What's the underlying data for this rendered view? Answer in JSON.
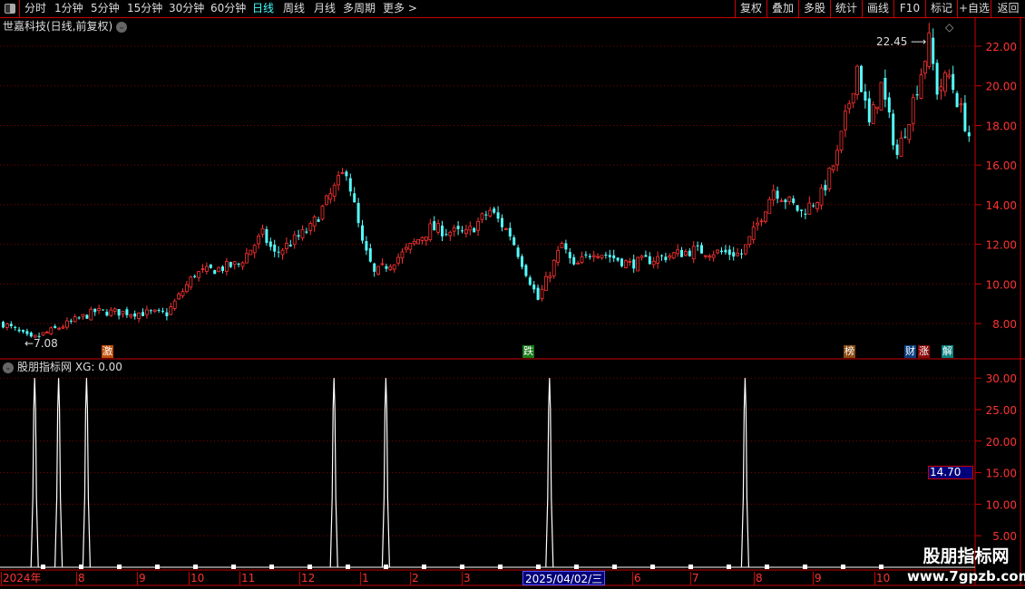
{
  "toolbar": {
    "periods": [
      "分时",
      "1分钟",
      "5分钟",
      "15分钟",
      "30分钟",
      "60分钟",
      "日线",
      "周线",
      "月线",
      "多周期",
      "更多 >"
    ],
    "active_period": "日线",
    "right_buttons": [
      "复权",
      "叠加",
      "多股",
      "统计",
      "画线",
      "F10",
      "标记",
      "+自选",
      "返回"
    ]
  },
  "chart": {
    "title": "世嘉科技(日线,前复权)",
    "high_label": "22.45",
    "low_label": "7.08",
    "price_ticks": [
      22,
      20,
      18,
      16,
      14,
      12,
      10,
      8
    ],
    "candle_keypoints": [
      [
        0,
        8.0
      ],
      [
        7,
        7.2
      ],
      [
        14,
        7.8
      ],
      [
        23,
        8.6
      ],
      [
        41,
        8.5
      ],
      [
        48,
        10.5
      ],
      [
        59,
        11.0
      ],
      [
        65,
        12.5
      ],
      [
        68,
        11.5
      ],
      [
        77,
        12.8
      ],
      [
        86,
        15.8
      ],
      [
        90,
        12.0
      ],
      [
        93,
        10.5
      ],
      [
        100,
        11.5
      ],
      [
        107,
        12.8
      ],
      [
        116,
        12.5
      ],
      [
        122,
        13.7
      ],
      [
        127,
        12.5
      ],
      [
        134,
        9.2
      ],
      [
        140,
        12.0
      ],
      [
        143,
        10.8
      ],
      [
        148,
        11.7
      ],
      [
        157,
        11.0
      ],
      [
        173,
        11.7
      ],
      [
        185,
        11.5
      ],
      [
        188,
        12.6
      ],
      [
        193,
        14.8
      ],
      [
        200,
        13.6
      ],
      [
        205,
        14.5
      ],
      [
        209,
        16.5
      ],
      [
        214,
        21.0
      ],
      [
        217,
        18.0
      ],
      [
        220,
        20.0
      ],
      [
        224,
        16.5
      ],
      [
        227,
        18.5
      ],
      [
        232,
        22.2
      ],
      [
        234,
        19.8
      ],
      [
        237,
        20.5
      ],
      [
        242,
        17.5
      ]
    ],
    "badges": [
      {
        "text": "激",
        "color": "#c0500a"
      },
      {
        "text": "跌",
        "color": "#1a7a1a"
      },
      {
        "text": "榜",
        "color": "#8a4a10"
      },
      {
        "text": "财",
        "color": "#0a4080"
      },
      {
        "text": "涨",
        "color": "#8a0a0a"
      },
      {
        "text": "解",
        "color": "#0a8080"
      }
    ],
    "up_color": "#ff3232",
    "down_color": "#54fcfc"
  },
  "indicator": {
    "title": "股朋指标网",
    "value_label": "XG: 0.00",
    "ticks": [
      "30.00",
      "25.00",
      "20.00",
      "15.00",
      "10.00",
      "5.00"
    ],
    "current_value": "14.70",
    "signal_candles": [
      8,
      14,
      21,
      83,
      96,
      137,
      186
    ],
    "signal_value": 30
  },
  "date_axis": {
    "labels": [
      "2024年",
      "8",
      "9",
      "10",
      "11",
      "12",
      "1",
      "2",
      "3",
      "6",
      "7",
      "8",
      "9",
      "10"
    ],
    "selected": "2025/04/02/三"
  },
  "watermark": {
    "name": "股朋指标网",
    "url": "www.7gpzb.com"
  }
}
